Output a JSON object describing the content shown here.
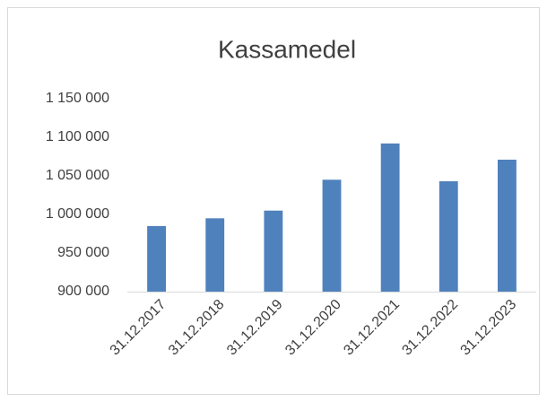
{
  "chart_data": {
    "type": "bar",
    "title": "Kassamedel",
    "categories": [
      "31.12.2017",
      "31.12.2018",
      "31.12.2019",
      "31.12.2020",
      "31.12.2021",
      "31.12.2022",
      "31.12.2023"
    ],
    "values": [
      985000,
      995000,
      1005000,
      1045000,
      1092000,
      1043000,
      1071000
    ],
    "color": "#4f81bd",
    "ylim": [
      900000,
      1150000
    ],
    "yticks": [
      {
        "value": 900000,
        "label": "900 000"
      },
      {
        "value": 950000,
        "label": "950 000"
      },
      {
        "value": 1000000,
        "label": "1 000 000"
      },
      {
        "value": 1050000,
        "label": "1 050 000"
      },
      {
        "value": 1100000,
        "label": "1 100 000"
      },
      {
        "value": 1150000,
        "label": "1 150 000"
      }
    ],
    "grid": false
  }
}
